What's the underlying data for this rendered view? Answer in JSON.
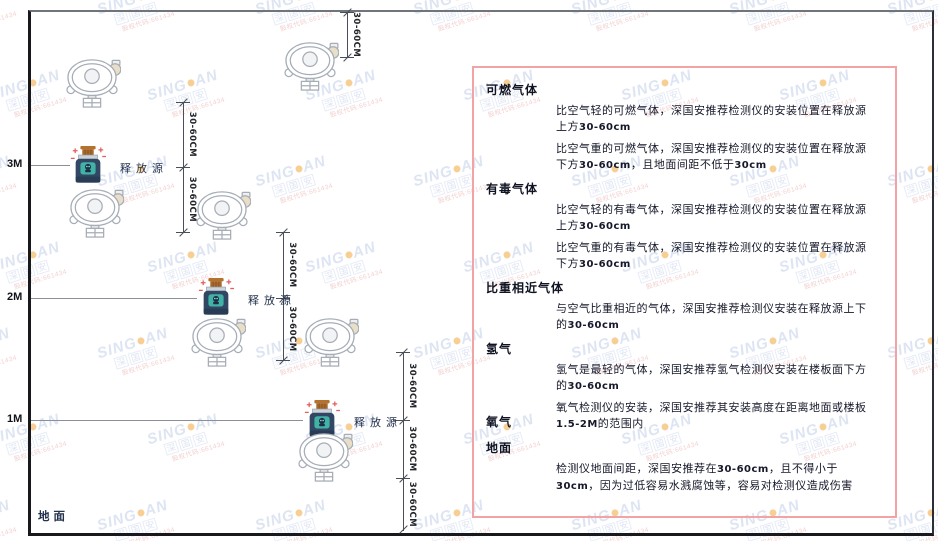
{
  "watermark": {
    "brand_left": "SING",
    "brand_right": "AN",
    "cjk": "深国安",
    "red_text": "股权代码:661434"
  },
  "diagram": {
    "axis_labels": [
      "3M",
      "2M",
      "1M"
    ],
    "ground_label": "地面",
    "source_label": "释放源",
    "dim_label": "30-60CM"
  },
  "panel": {
    "sections": [
      {
        "heading": "可燃气体",
        "inline": false,
        "paragraphs": [
          "比空气轻的可燃气体，深国安推荐检测仪的安装位置在释放源上方30-60cm",
          "比空气重的可燃气体，深国安推荐检测仪的安装位置在释放源下方30-60cm，且地面间距不低于30cm"
        ]
      },
      {
        "heading": "有毒气体",
        "inline": false,
        "paragraphs": [
          "比空气轻的有毒气体，深国安推荐检测仪的安装位置在释放源上方30-60cm",
          "比空气重的有毒气体，深国安推荐检测仪的安装位置在释放源下方30-60cm"
        ]
      },
      {
        "heading": "比重相近气体",
        "inline": false,
        "paragraphs": [
          "与空气比重相近的气体，深国安推荐检测仪安装在释放源上下的30-60cm"
        ]
      },
      {
        "heading": "氢气",
        "inline": false,
        "paragraphs": [
          "氢气是最轻的气体，深国安推荐氢气检测仪安装在楼板面下方的30-60cm"
        ]
      },
      {
        "heading": "氧气",
        "inline": true,
        "paragraphs": [
          "氧气检测仪的安装，深国安推荐其安装高度在距离地面或楼板1.5-2M的范围内"
        ]
      },
      {
        "heading": "地面",
        "inline": false,
        "paragraphs": [
          "检测仪地面间距，深国安推荐在30-60cm，且不得小于30cm，因为过低容易水溅腐蚀等，容易对检测仪造成伤害"
        ]
      }
    ]
  }
}
